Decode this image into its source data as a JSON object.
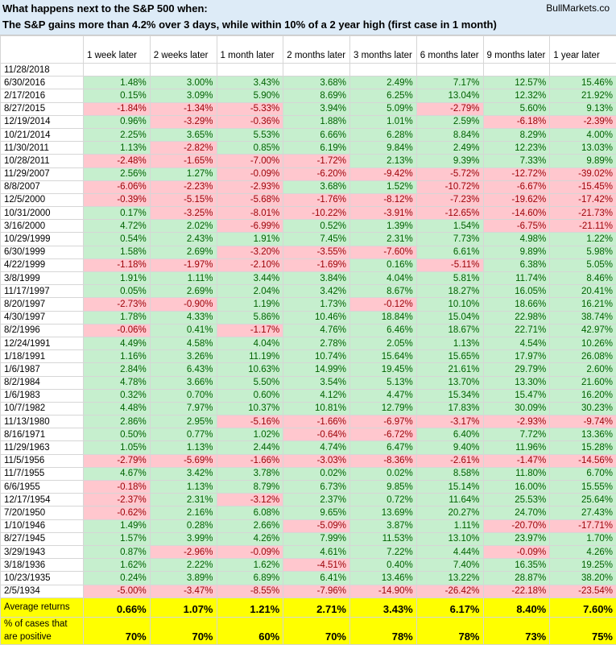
{
  "header": {
    "title": "What happens next to the S&P 500 when:",
    "source": "BullMarkets.co",
    "subtitle": "The S&P gains more than 4.2% over 3 days, while within 10% of a 2 year high (first case in 1 month)"
  },
  "table": {
    "columns": [
      "1 week later",
      "2 weeks later",
      "1 month later",
      "2 months later",
      "3 months later",
      "6 months later",
      "9 months later",
      "1 year later"
    ],
    "rows": [
      {
        "date": "11/28/2018",
        "values": []
      },
      {
        "date": "6/30/2016",
        "values": [
          "1.48%",
          "3.00%",
          "3.43%",
          "3.68%",
          "2.49%",
          "7.17%",
          "12.57%",
          "15.46%"
        ]
      },
      {
        "date": "2/17/2016",
        "values": [
          "0.15%",
          "3.09%",
          "5.90%",
          "8.69%",
          "6.25%",
          "13.04%",
          "12.32%",
          "21.92%"
        ]
      },
      {
        "date": "8/27/2015",
        "values": [
          "-1.84%",
          "-1.34%",
          "-5.33%",
          "3.94%",
          "5.09%",
          "-2.79%",
          "5.60%",
          "9.13%"
        ]
      },
      {
        "date": "12/19/2014",
        "values": [
          "0.96%",
          "-3.29%",
          "-0.36%",
          "1.88%",
          "1.01%",
          "2.59%",
          "-6.18%",
          "-2.39%"
        ]
      },
      {
        "date": "10/21/2014",
        "values": [
          "2.25%",
          "3.65%",
          "5.53%",
          "6.66%",
          "6.28%",
          "8.84%",
          "8.29%",
          "4.00%"
        ]
      },
      {
        "date": "11/30/2011",
        "values": [
          "1.13%",
          "-2.82%",
          "0.85%",
          "6.19%",
          "9.84%",
          "2.49%",
          "12.23%",
          "13.03%"
        ]
      },
      {
        "date": "10/28/2011",
        "values": [
          "-2.48%",
          "-1.65%",
          "-7.00%",
          "-1.72%",
          "2.13%",
          "9.39%",
          "7.33%",
          "9.89%"
        ]
      },
      {
        "date": "11/29/2007",
        "values": [
          "2.56%",
          "1.27%",
          "-0.09%",
          "-6.20%",
          "-9.42%",
          "-5.72%",
          "-12.72%",
          "-39.02%"
        ]
      },
      {
        "date": "8/8/2007",
        "values": [
          "-6.06%",
          "-2.23%",
          "-2.93%",
          "3.68%",
          "1.52%",
          "-10.72%",
          "-6.67%",
          "-15.45%"
        ]
      },
      {
        "date": "12/5/2000",
        "values": [
          "-0.39%",
          "-5.15%",
          "-5.68%",
          "-1.76%",
          "-8.12%",
          "-7.23%",
          "-19.62%",
          "-17.42%"
        ]
      },
      {
        "date": "10/31/2000",
        "values": [
          "0.17%",
          "-3.25%",
          "-8.01%",
          "-10.22%",
          "-3.91%",
          "-12.65%",
          "-14.60%",
          "-21.73%"
        ]
      },
      {
        "date": "3/16/2000",
        "values": [
          "4.72%",
          "2.02%",
          "-6.99%",
          "0.52%",
          "1.39%",
          "1.54%",
          "-6.75%",
          "-21.11%"
        ]
      },
      {
        "date": "10/29/1999",
        "values": [
          "0.54%",
          "2.43%",
          "1.91%",
          "7.45%",
          "2.31%",
          "7.73%",
          "4.98%",
          "1.22%"
        ]
      },
      {
        "date": "6/30/1999",
        "values": [
          "1.58%",
          "2.69%",
          "-3.20%",
          "-3.55%",
          "-7.60%",
          "6.61%",
          "9.89%",
          "5.98%"
        ]
      },
      {
        "date": "4/22/1999",
        "values": [
          "-1.18%",
          "-1.97%",
          "-2.10%",
          "-1.69%",
          "0.16%",
          "-5.11%",
          "6.38%",
          "5.05%"
        ]
      },
      {
        "date": "3/8/1999",
        "values": [
          "1.91%",
          "1.11%",
          "3.44%",
          "3.84%",
          "4.04%",
          "5.81%",
          "11.74%",
          "8.46%"
        ]
      },
      {
        "date": "11/17/1997",
        "values": [
          "0.05%",
          "2.69%",
          "2.04%",
          "3.42%",
          "8.67%",
          "18.27%",
          "16.05%",
          "20.41%"
        ]
      },
      {
        "date": "8/20/1997",
        "values": [
          "-2.73%",
          "-0.90%",
          "1.19%",
          "1.73%",
          "-0.12%",
          "10.10%",
          "18.66%",
          "16.21%"
        ]
      },
      {
        "date": "4/30/1997",
        "values": [
          "1.78%",
          "4.33%",
          "5.86%",
          "10.46%",
          "18.84%",
          "15.04%",
          "22.98%",
          "38.74%"
        ]
      },
      {
        "date": "8/2/1996",
        "values": [
          "-0.06%",
          "0.41%",
          "-1.17%",
          "4.76%",
          "6.46%",
          "18.67%",
          "22.71%",
          "42.97%"
        ]
      },
      {
        "date": "12/24/1991",
        "values": [
          "4.49%",
          "4.58%",
          "4.04%",
          "2.78%",
          "2.05%",
          "1.13%",
          "4.54%",
          "10.26%"
        ]
      },
      {
        "date": "1/18/1991",
        "values": [
          "1.16%",
          "3.26%",
          "11.19%",
          "10.74%",
          "15.64%",
          "15.65%",
          "17.97%",
          "26.08%"
        ]
      },
      {
        "date": "1/6/1987",
        "values": [
          "2.84%",
          "6.43%",
          "10.63%",
          "14.99%",
          "19.45%",
          "21.61%",
          "29.79%",
          "2.60%"
        ]
      },
      {
        "date": "8/2/1984",
        "values": [
          "4.78%",
          "3.66%",
          "5.50%",
          "3.54%",
          "5.13%",
          "13.70%",
          "13.30%",
          "21.60%"
        ]
      },
      {
        "date": "1/6/1983",
        "values": [
          "0.32%",
          "0.70%",
          "0.60%",
          "4.12%",
          "4.47%",
          "15.34%",
          "15.47%",
          "16.20%"
        ]
      },
      {
        "date": "10/7/1982",
        "values": [
          "4.48%",
          "7.97%",
          "10.37%",
          "10.81%",
          "12.79%",
          "17.83%",
          "30.09%",
          "30.23%"
        ]
      },
      {
        "date": "11/13/1980",
        "values": [
          "2.86%",
          "2.95%",
          "-5.16%",
          "-1.66%",
          "-6.97%",
          "-3.17%",
          "-2.93%",
          "-9.74%"
        ]
      },
      {
        "date": "8/16/1971",
        "values": [
          "0.50%",
          "0.77%",
          "1.02%",
          "-0.64%",
          "-6.72%",
          "6.40%",
          "7.72%",
          "13.36%"
        ]
      },
      {
        "date": "11/29/1963",
        "values": [
          "1.05%",
          "1.13%",
          "2.44%",
          "4.74%",
          "6.47%",
          "9.40%",
          "11.96%",
          "15.28%"
        ]
      },
      {
        "date": "11/5/1956",
        "values": [
          "-2.79%",
          "-5.69%",
          "-1.66%",
          "-3.03%",
          "-8.36%",
          "-2.61%",
          "-1.47%",
          "-14.56%"
        ]
      },
      {
        "date": "11/7/1955",
        "values": [
          "4.67%",
          "3.42%",
          "3.78%",
          "0.02%",
          "0.02%",
          "8.58%",
          "11.80%",
          "6.70%"
        ]
      },
      {
        "date": "6/6/1955",
        "values": [
          "-0.18%",
          "1.13%",
          "8.79%",
          "6.73%",
          "9.85%",
          "15.14%",
          "16.00%",
          "15.55%"
        ]
      },
      {
        "date": "12/17/1954",
        "values": [
          "-2.37%",
          "2.31%",
          "-3.12%",
          "2.37%",
          "0.72%",
          "11.64%",
          "25.53%",
          "25.64%"
        ]
      },
      {
        "date": "7/20/1950",
        "values": [
          "-0.62%",
          "2.16%",
          "6.08%",
          "9.65%",
          "13.69%",
          "20.27%",
          "24.70%",
          "27.43%"
        ]
      },
      {
        "date": "1/10/1946",
        "values": [
          "1.49%",
          "0.28%",
          "2.66%",
          "-5.09%",
          "3.87%",
          "1.11%",
          "-20.70%",
          "-17.71%"
        ]
      },
      {
        "date": "8/27/1945",
        "values": [
          "1.57%",
          "3.99%",
          "4.26%",
          "7.99%",
          "11.53%",
          "13.10%",
          "23.97%",
          "1.70%"
        ]
      },
      {
        "date": "3/29/1943",
        "values": [
          "0.87%",
          "-2.96%",
          "-0.09%",
          "4.61%",
          "7.22%",
          "4.44%",
          "-0.09%",
          "4.26%"
        ]
      },
      {
        "date": "3/18/1936",
        "values": [
          "1.62%",
          "2.22%",
          "1.62%",
          "-4.51%",
          "0.40%",
          "7.40%",
          "16.35%",
          "19.25%"
        ]
      },
      {
        "date": "10/23/1935",
        "values": [
          "0.24%",
          "3.89%",
          "6.89%",
          "6.41%",
          "13.46%",
          "13.22%",
          "28.87%",
          "38.20%"
        ]
      },
      {
        "date": "2/5/1934",
        "values": [
          "-5.00%",
          "-3.47%",
          "-8.55%",
          "-7.96%",
          "-14.90%",
          "-26.42%",
          "-22.18%",
          "-23.54%"
        ]
      }
    ],
    "summary": [
      {
        "label": "Average returns",
        "values": [
          "0.66%",
          "1.07%",
          "1.21%",
          "2.71%",
          "3.43%",
          "6.17%",
          "8.40%",
          "7.60%"
        ]
      },
      {
        "label": "% of cases that are positive",
        "values": [
          "70%",
          "70%",
          "60%",
          "70%",
          "78%",
          "78%",
          "73%",
          "75%"
        ]
      }
    ]
  }
}
